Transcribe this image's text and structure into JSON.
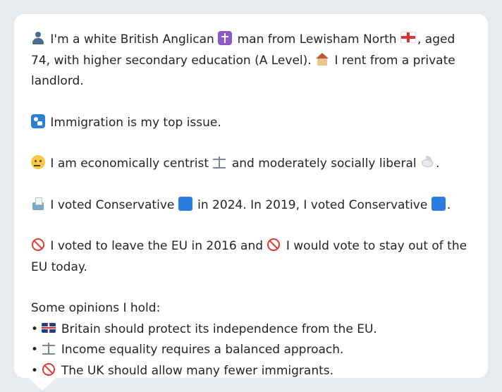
{
  "profile": {
    "intro_part1": "I'm a white British Anglican",
    "intro_part2": "man from Lewisham North",
    "intro_part3": ", aged 74, with higher secondary education (A Level).",
    "intro_part4": "I rent from a private landlord.",
    "top_issue": "Immigration is my top issue.",
    "economic_part1": "I am economically centrist",
    "economic_part2": "and moderately socially liberal",
    "economic_part3": ".",
    "vote_part1": "I voted Conservative",
    "vote_part2": "in 2024. In 2019, I voted Conservative",
    "vote_part3": ".",
    "eu_part1": "I voted to leave the EU in 2016 and",
    "eu_part2": "I would vote to stay out of the EU today.",
    "opinions_heading": "Some opinions I hold:",
    "opinions": [
      "Britain should protect its independence from the EU.",
      "Income equality requires a balanced approach.",
      "The UK should allow many fewer immigrants."
    ],
    "bullet": "•"
  },
  "icons": {
    "person": "person-icon",
    "cross": "latin-cross-icon",
    "england_flag": "england-flag-icon",
    "house": "house-icon",
    "immigration": "passport-control-icon",
    "thinking": "thinking-face-icon",
    "scale": "balance-scale-icon",
    "dove": "dove-icon",
    "ballot": "ballot-box-icon",
    "party_square": "blue-square-icon",
    "prohibited": "prohibited-icon",
    "uk_flag": "uk-flag-icon"
  },
  "colors": {
    "background": "#e7eaee",
    "card": "#ffffff",
    "text": "#1f2328",
    "conservative_blue": "#2b7de1"
  }
}
